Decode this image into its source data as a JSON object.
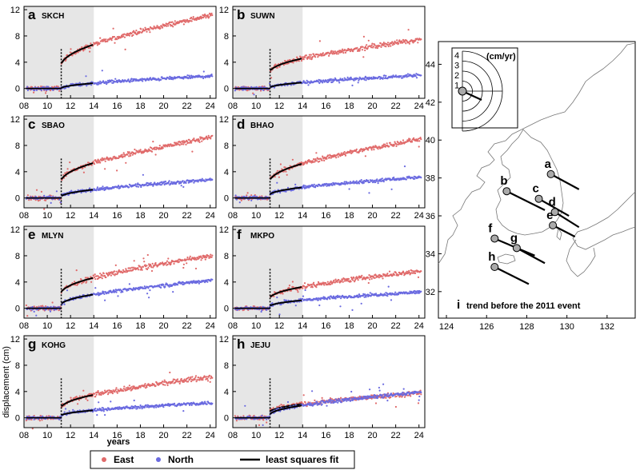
{
  "chart_data": {
    "type": "scatter",
    "description_units": "displacement (cm) versus years",
    "ylabel": "displacement (cm)",
    "xlabel": "years",
    "xlim": [
      8,
      24.5
    ],
    "ylim": [
      -1.5,
      12.5
    ],
    "x_ticks": [
      "08",
      "10",
      "12",
      "14",
      "16",
      "18",
      "20",
      "22",
      "24"
    ],
    "x_tick_values": [
      8,
      10,
      12,
      14,
      16,
      18,
      20,
      22,
      24
    ],
    "y_ticks": [
      "0",
      "4",
      "8",
      "12"
    ],
    "y_tick_values": [
      0,
      4,
      8,
      12
    ],
    "shaded_interval": [
      8,
      14
    ],
    "event_year": 11.2,
    "legend": {
      "east": "East",
      "north": "North",
      "fit": "least squares fit"
    },
    "colors": {
      "east": "#e06a6a",
      "north": "#6a6ae0",
      "fit": "#000000",
      "shade": "#e6e6e6"
    },
    "panels": [
      {
        "letter": "a",
        "station": "SKCH",
        "east": {
          "jump": 3.8,
          "end": 11.2
        },
        "north": {
          "jump": 0.1,
          "end": 1.9
        }
      },
      {
        "letter": "b",
        "station": "SUWN",
        "east": {
          "jump": 2.7,
          "end": 7.5
        },
        "north": {
          "jump": 0.2,
          "end": 2.0
        }
      },
      {
        "letter": "c",
        "station": "SBAO",
        "east": {
          "jump": 2.8,
          "end": 9.3
        },
        "north": {
          "jump": 0.3,
          "end": 2.8
        }
      },
      {
        "letter": "d",
        "station": "BHAO",
        "east": {
          "jump": 2.8,
          "end": 9.0
        },
        "north": {
          "jump": 0.6,
          "end": 3.2
        }
      },
      {
        "letter": "e",
        "station": "MLYN",
        "east": {
          "jump": 2.5,
          "end": 8.0
        },
        "north": {
          "jump": 0.7,
          "end": 4.3
        }
      },
      {
        "letter": "f",
        "station": "MKPO",
        "east": {
          "jump": 1.7,
          "end": 5.7
        },
        "north": {
          "jump": 0.4,
          "end": 2.5
        }
      },
      {
        "letter": "g",
        "station": "KOHG",
        "east": {
          "jump": 1.7,
          "end": 6.3
        },
        "north": {
          "jump": 0.4,
          "end": 2.3
        }
      },
      {
        "letter": "h",
        "station": "JEJU",
        "east": {
          "jump": 1.0,
          "end": 3.8
        },
        "north": {
          "jump": 0.6,
          "end": 3.9
        }
      }
    ]
  },
  "map": {
    "panel_letter": "i",
    "caption": "trend before the 2011 event",
    "x_ticks": [
      "124",
      "126",
      "128",
      "130",
      "132"
    ],
    "x_tick_values": [
      124,
      126,
      128,
      130,
      132
    ],
    "y_ticks": [
      "32",
      "34",
      "36",
      "38",
      "40",
      "42",
      "44"
    ],
    "y_tick_values": [
      32,
      34,
      36,
      38,
      40,
      42,
      44
    ],
    "xlim": [
      123.6,
      133.4
    ],
    "ylim": [
      30.6,
      45.2
    ],
    "scale_unit": "(cm/yr)",
    "scale_ticks": [
      "1",
      "2",
      "3",
      "4"
    ],
    "stations": [
      {
        "label": "a",
        "lon": 129.2,
        "lat": 38.2,
        "dlon": 1.4,
        "dlat": -0.8
      },
      {
        "label": "b",
        "lon": 127.0,
        "lat": 37.3,
        "dlon": 1.9,
        "dlat": -1.0
      },
      {
        "label": "c",
        "lon": 128.6,
        "lat": 36.9,
        "dlon": 1.5,
        "dlat": -0.9
      },
      {
        "label": "d",
        "lon": 129.4,
        "lat": 36.2,
        "dlon": 1.2,
        "dlat": -0.8
      },
      {
        "label": "e",
        "lon": 129.3,
        "lat": 35.5,
        "dlon": 1.1,
        "dlat": -0.6
      },
      {
        "label": "f",
        "lon": 126.4,
        "lat": 34.8,
        "dlon": 2.0,
        "dlat": -0.9
      },
      {
        "label": "g",
        "lon": 127.5,
        "lat": 34.3,
        "dlon": 1.4,
        "dlat": -0.8
      },
      {
        "label": "h",
        "lon": 126.4,
        "lat": 33.3,
        "dlon": 1.7,
        "dlat": -0.9
      }
    ]
  }
}
